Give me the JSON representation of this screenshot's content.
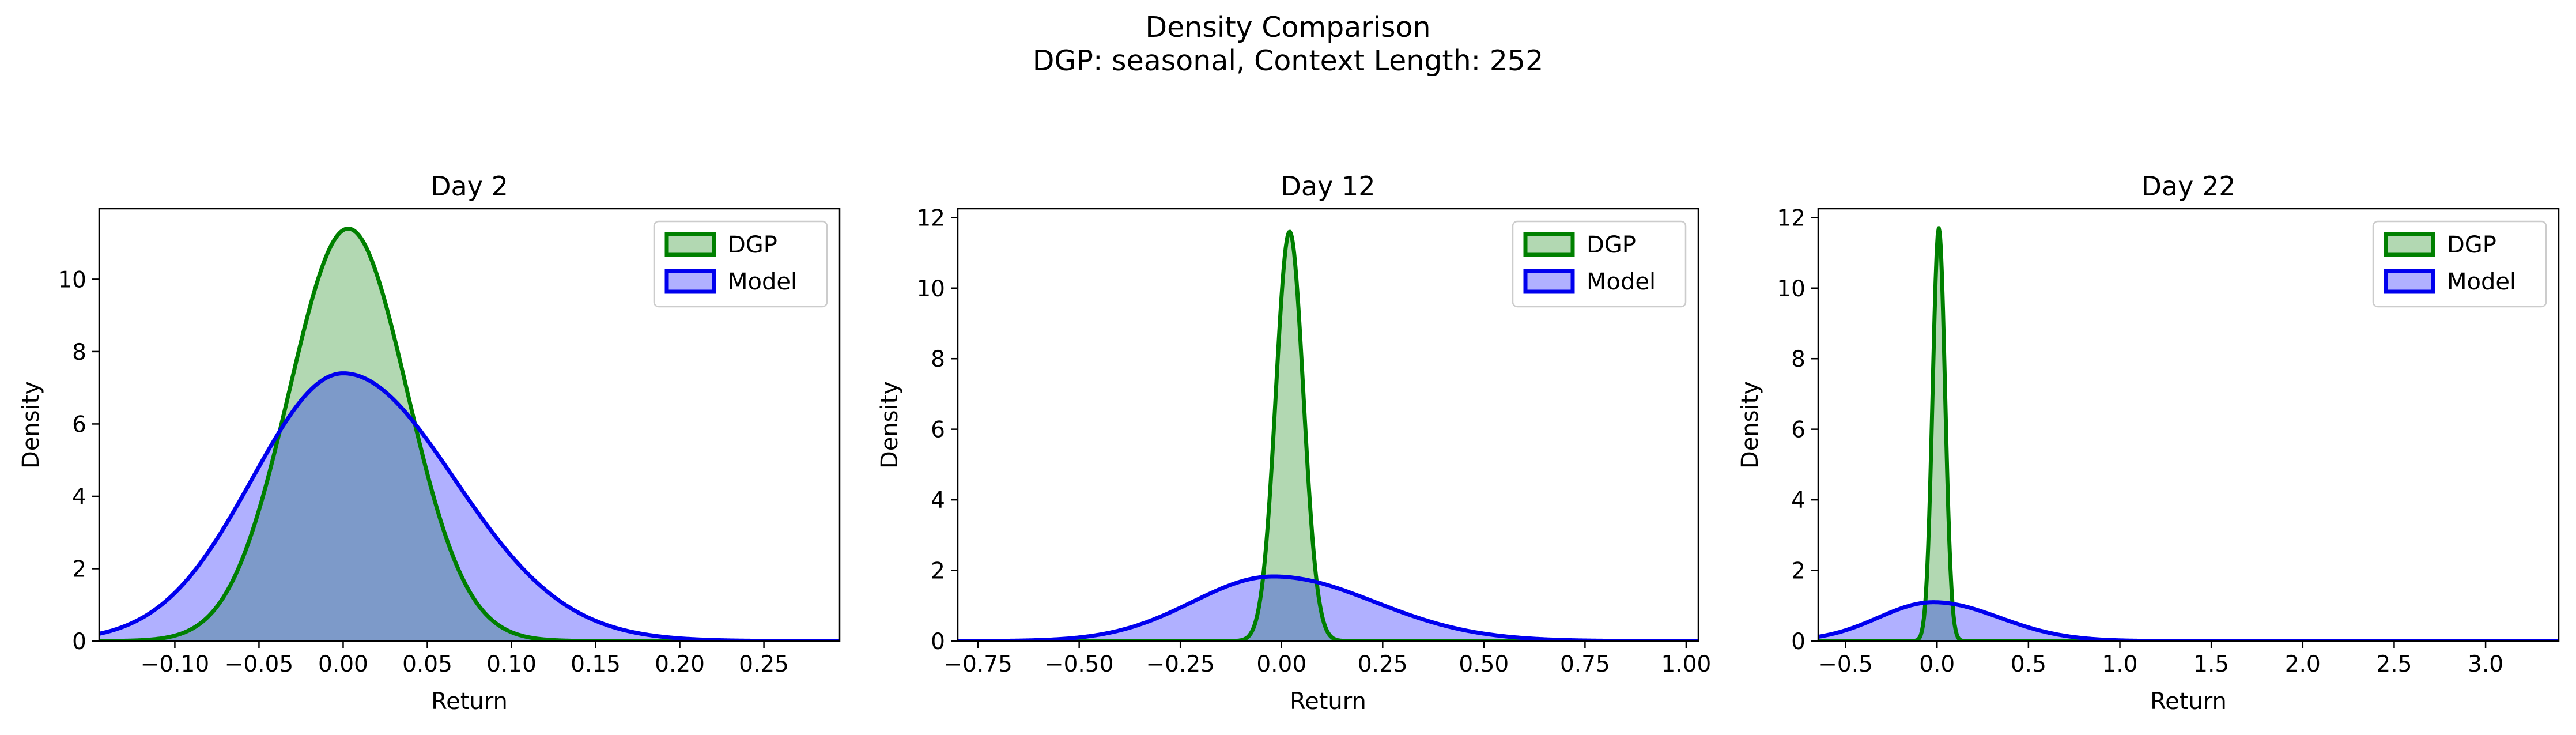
{
  "suptitle": {
    "line1": "Density Comparison",
    "line2": "DGP: seasonal, Context Length: 252"
  },
  "colors": {
    "dgp_line": "#008000",
    "dgp_fill": "#b2d8b2",
    "model_line": "#0000ee",
    "model_fill": "#b0b0ff",
    "overlap_fill": "#7d9ac9",
    "overlap_line": "#0a5a5a"
  },
  "chart_data": [
    {
      "type": "area",
      "title": "Day 2",
      "xlabel": "Return",
      "ylabel": "Density",
      "xlim": [
        -0.145,
        0.295
      ],
      "ylim": [
        0,
        11.95
      ],
      "xticks": [
        -0.1,
        -0.05,
        0.0,
        0.05,
        0.1,
        0.15,
        0.2,
        0.25
      ],
      "xtick_labels": [
        "−0.10",
        "−0.05",
        "0.00",
        "0.05",
        "0.10",
        "0.15",
        "0.20",
        "0.25"
      ],
      "yticks": [
        0,
        2,
        4,
        6,
        8,
        10
      ],
      "ytick_labels": [
        "0",
        "2",
        "4",
        "6",
        "8",
        "10"
      ],
      "legend": "top-right",
      "series": [
        {
          "name": "DGP",
          "mean": 0.003,
          "std": 0.035,
          "peak": 11.4
        },
        {
          "name": "Model",
          "mean": 0.0,
          "std": 0.054,
          "peak": 7.4,
          "right_tail_std": 0.066
        }
      ]
    },
    {
      "type": "area",
      "title": "Day 12",
      "xlabel": "Return",
      "ylabel": "Density",
      "xlim": [
        -0.8,
        1.03
      ],
      "ylim": [
        0,
        12.25
      ],
      "xticks": [
        -0.75,
        -0.5,
        -0.25,
        0.0,
        0.25,
        0.5,
        0.75,
        1.0
      ],
      "xtick_labels": [
        "−0.75",
        "−0.50",
        "−0.25",
        "0.00",
        "0.25",
        "0.50",
        "0.75",
        "1.00"
      ],
      "yticks": [
        0,
        2,
        4,
        6,
        8,
        10,
        12
      ],
      "ytick_labels": [
        "0",
        "2",
        "4",
        "6",
        "8",
        "10",
        "12"
      ],
      "legend": "top-right",
      "series": [
        {
          "name": "DGP",
          "mean": 0.02,
          "std": 0.034,
          "peak": 11.6
        },
        {
          "name": "Model",
          "mean": -0.02,
          "std": 0.2,
          "peak": 1.83,
          "right_tail_std": 0.25
        }
      ]
    },
    {
      "type": "area",
      "title": "Day 22",
      "xlabel": "Return",
      "ylabel": "Density",
      "xlim": [
        -0.65,
        3.4
      ],
      "ylim": [
        0,
        12.25
      ],
      "xticks": [
        -0.5,
        0.0,
        0.5,
        1.0,
        1.5,
        2.0,
        2.5,
        3.0
      ],
      "xtick_labels": [
        "−0.5",
        "0.0",
        "0.5",
        "1.0",
        "1.5",
        "2.0",
        "2.5",
        "3.0"
      ],
      "yticks": [
        0,
        2,
        4,
        6,
        8,
        10,
        12
      ],
      "ytick_labels": [
        "0",
        "2",
        "4",
        "6",
        "8",
        "10",
        "12"
      ],
      "legend": "top-right",
      "series": [
        {
          "name": "DGP",
          "mean": 0.01,
          "std": 0.034,
          "peak": 11.7
        },
        {
          "name": "Model",
          "mean": -0.02,
          "std": 0.3,
          "peak": 1.1,
          "right_tail_std": 0.36
        }
      ]
    }
  ]
}
